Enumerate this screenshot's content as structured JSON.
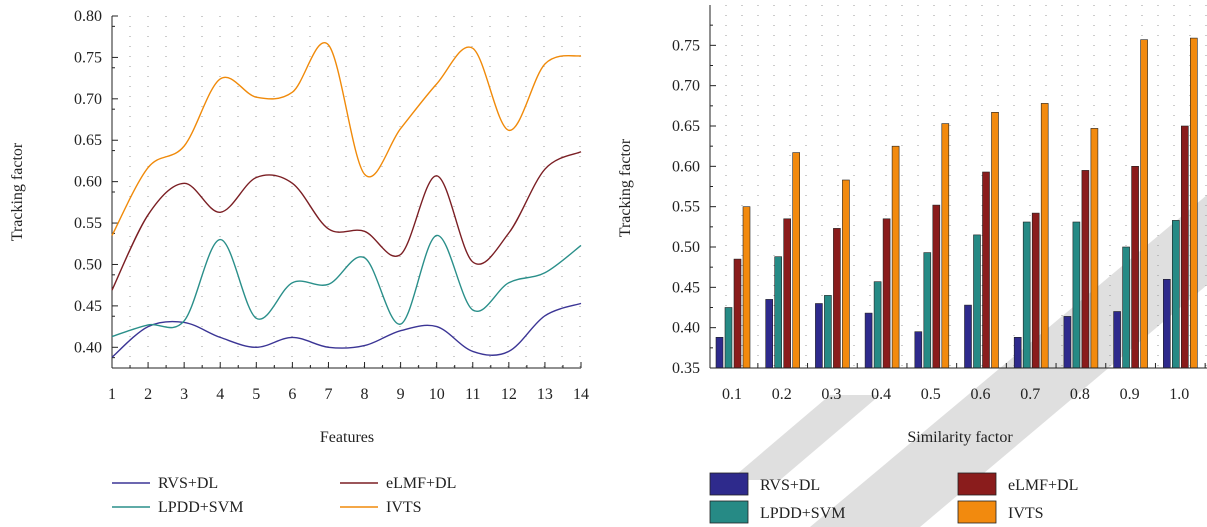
{
  "chart_data": [
    {
      "type": "line",
      "xlabel": "Features",
      "ylabel": "Tracking factor",
      "xlim": [
        1,
        14
      ],
      "ylim": [
        0.375,
        0.8
      ],
      "x": [
        1,
        2,
        3,
        4,
        5,
        6,
        7,
        8,
        9,
        10,
        11,
        12,
        13,
        14
      ],
      "xticks": [
        "1",
        "2",
        "3",
        "4",
        "5",
        "6",
        "7",
        "8",
        "9",
        "10",
        "11",
        "12",
        "13",
        "14"
      ],
      "yticks": [
        "0.40",
        "0.45",
        "0.50",
        "0.55",
        "0.60",
        "0.65",
        "0.70",
        "0.75",
        "0.80"
      ],
      "grid": true,
      "legend": "bottom",
      "series": [
        {
          "name": "RVS+DL",
          "color": "#3b3595",
          "values": [
            0.388,
            0.425,
            0.43,
            0.412,
            0.4,
            0.412,
            0.4,
            0.402,
            0.42,
            0.425,
            0.395,
            0.395,
            0.438,
            0.453
          ]
        },
        {
          "name": "eLMF+DL",
          "color": "#7b1f24",
          "values": [
            0.469,
            0.56,
            0.598,
            0.563,
            0.605,
            0.598,
            0.543,
            0.54,
            0.512,
            0.607,
            0.503,
            0.538,
            0.615,
            0.636
          ]
        },
        {
          "name": "LPDD+SVM",
          "color": "#2a8f8a",
          "values": [
            0.413,
            0.427,
            0.432,
            0.53,
            0.435,
            0.478,
            0.476,
            0.508,
            0.428,
            0.535,
            0.445,
            0.478,
            0.49,
            0.523
          ]
        },
        {
          "name": "IVTS",
          "color": "#f08a0a",
          "values": [
            0.535,
            0.617,
            0.643,
            0.724,
            0.702,
            0.708,
            0.765,
            0.609,
            0.664,
            0.718,
            0.761,
            0.662,
            0.742,
            0.752
          ]
        }
      ]
    },
    {
      "type": "bar",
      "xlabel": "Similarity factor",
      "ylabel": "Tracking factor",
      "ylim": [
        0.35,
        0.8
      ],
      "categories": [
        "0.1",
        "0.2",
        "0.3",
        "0.4",
        "0.5",
        "0.6",
        "0.7",
        "0.8",
        "0.9",
        "1.0"
      ],
      "yticks": [
        "0.35",
        "0.40",
        "0.45",
        "0.50",
        "0.55",
        "0.60",
        "0.65",
        "0.70",
        "0.75"
      ],
      "grid": true,
      "legend": "bottom",
      "series": [
        {
          "name": "RVS+DL",
          "color": "#2e2a8c",
          "values": [
            0.388,
            0.435,
            0.43,
            0.418,
            0.395,
            0.428,
            0.388,
            0.414,
            0.42,
            0.46
          ]
        },
        {
          "name": "LPDD+SVM",
          "color": "#268a85",
          "values": [
            0.425,
            0.488,
            0.44,
            0.457,
            0.493,
            0.515,
            0.531,
            0.531,
            0.5,
            0.533
          ]
        },
        {
          "name": "eLMF+DL",
          "color": "#8a1c1c",
          "values": [
            0.485,
            0.535,
            0.523,
            0.535,
            0.552,
            0.593,
            0.542,
            0.595,
            0.6,
            0.65
          ]
        },
        {
          "name": "IVTS",
          "color": "#f28a0e",
          "values": [
            0.55,
            0.617,
            0.583,
            0.625,
            0.653,
            0.667,
            0.678,
            0.647,
            0.757,
            0.759
          ]
        }
      ]
    }
  ]
}
